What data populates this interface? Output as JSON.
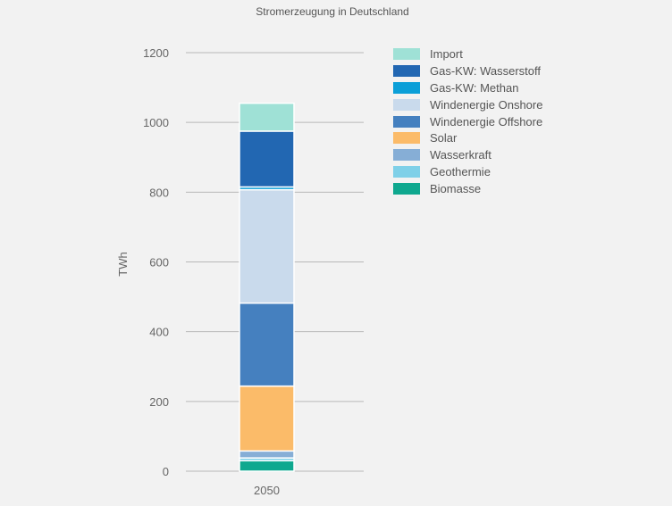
{
  "chart_data": {
    "type": "bar",
    "stacked": true,
    "title": "Stromerzeugung in Deutschland",
    "xlabel": "",
    "ylabel": "TWh",
    "ylim": [
      0,
      1200
    ],
    "yticks": [
      0,
      200,
      400,
      600,
      800,
      1000,
      1200
    ],
    "grid": true,
    "legend_position": "right",
    "categories": [
      "2050"
    ],
    "series": [
      {
        "name": "Biomasse",
        "color": "#0fa88f",
        "values": [
          30
        ]
      },
      {
        "name": "Geothermie",
        "color": "#7fd0e8",
        "values": [
          8
        ]
      },
      {
        "name": "Wasserkraft",
        "color": "#86aed6",
        "values": [
          20
        ]
      },
      {
        "name": "Solar",
        "color": "#fbbb69",
        "values": [
          186
        ]
      },
      {
        "name": "Windenergie Offshore",
        "color": "#4580bf",
        "values": [
          238
        ]
      },
      {
        "name": "Windenergie Onshore",
        "color": "#c9daec",
        "values": [
          325
        ]
      },
      {
        "name": "Gas-KW: Methan",
        "color": "#0b9fd8",
        "values": [
          8
        ]
      },
      {
        "name": "Gas-KW: Wasserstoff",
        "color": "#2267b2",
        "values": [
          160
        ]
      },
      {
        "name": "Import",
        "color": "#9fe1d6",
        "values": [
          80
        ]
      }
    ],
    "legend_order": [
      "Import",
      "Gas-KW: Wasserstoff",
      "Gas-KW: Methan",
      "Windenergie Onshore",
      "Windenergie Offshore",
      "Solar",
      "Wasserkraft",
      "Geothermie",
      "Biomasse"
    ]
  }
}
